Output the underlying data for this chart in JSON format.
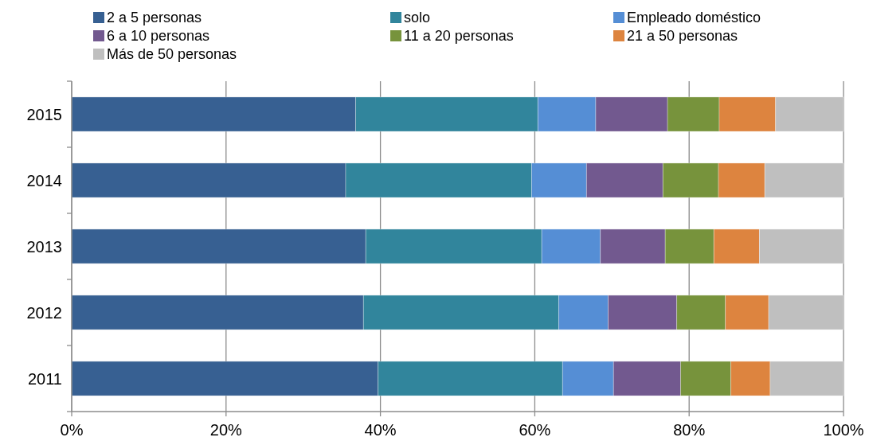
{
  "chart_data": {
    "type": "bar",
    "orientation": "horizontal",
    "stacked": true,
    "categories": [
      "2015",
      "2014",
      "2013",
      "2012",
      "2011"
    ],
    "series": [
      {
        "name": "2 a 5 personas",
        "color": "#376092",
        "values": [
          36.8,
          35.5,
          38.1,
          37.8,
          39.7
        ]
      },
      {
        "name": "solo",
        "color": "#31859c",
        "values": [
          23.6,
          24.1,
          22.8,
          25.3,
          23.9
        ]
      },
      {
        "name": "Empleado doméstico",
        "color": "#558ed5",
        "values": [
          7.5,
          7.1,
          7.6,
          6.4,
          6.6
        ]
      },
      {
        "name": "6 a 10 personas",
        "color": "#72598f",
        "values": [
          9.3,
          9.9,
          8.4,
          8.9,
          8.7
        ]
      },
      {
        "name": "11 a 20 personas",
        "color": "#77933c",
        "values": [
          6.7,
          7.2,
          6.3,
          6.3,
          6.5
        ]
      },
      {
        "name": "21 a 50 personas",
        "color": "#dd843f",
        "values": [
          7.3,
          6.0,
          5.9,
          5.6,
          5.1
        ]
      },
      {
        "name": "Más de 50 personas",
        "color": "#bfbfbf",
        "values": [
          8.8,
          10.2,
          10.9,
          9.7,
          9.5
        ]
      }
    ],
    "xlim": [
      0,
      100
    ],
    "xticks": [
      {
        "value": 0,
        "label": "0%"
      },
      {
        "value": 20,
        "label": "20%"
      },
      {
        "value": 40,
        "label": "40%"
      },
      {
        "value": 60,
        "label": "60%"
      },
      {
        "value": 80,
        "label": "80%"
      },
      {
        "value": 100,
        "label": "100%"
      }
    ],
    "grid": "x",
    "legend": "top"
  }
}
